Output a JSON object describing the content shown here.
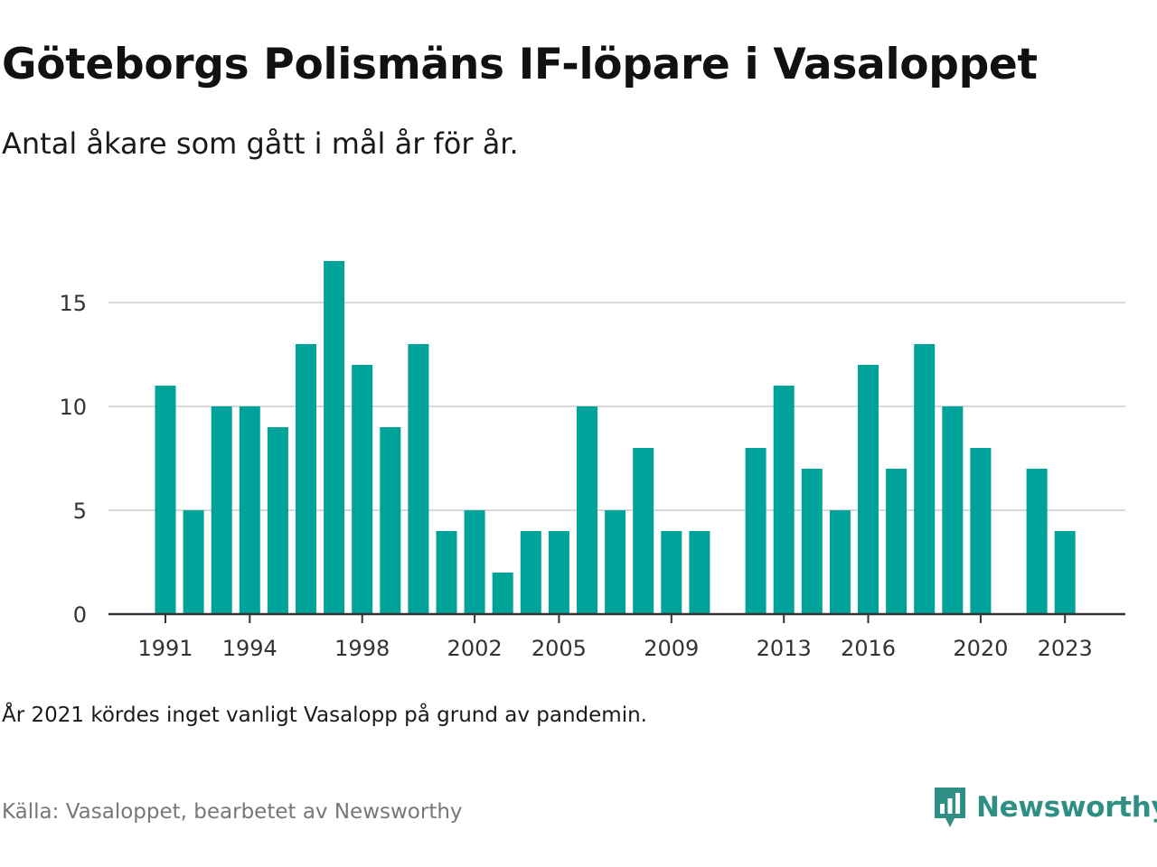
{
  "header": {
    "title": "Göteborgs Polismäns IF-löpare i Vasaloppet",
    "subtitle": "Antal åkare som gått i mål år för år."
  },
  "footer": {
    "note": "År 2021 kördes inget vanligt Vasalopp på grund av pandemin.",
    "source": "Källa: Vasaloppet, bearbetet av Newsworthy",
    "brand": "Newsworthy",
    "brand_icon": "newsworthy-logo-icon"
  },
  "colors": {
    "bar": "#00a399",
    "grid": "#d9d9d9",
    "axis": "#333333",
    "brand": "#2f8f85"
  },
  "chart_data": {
    "type": "bar",
    "x": [
      1991,
      1992,
      1993,
      1994,
      1995,
      1996,
      1997,
      1998,
      1999,
      2000,
      2001,
      2002,
      2003,
      2004,
      2005,
      2006,
      2007,
      2008,
      2009,
      2010,
      2011,
      2012,
      2013,
      2014,
      2015,
      2016,
      2017,
      2018,
      2019,
      2020,
      2021,
      2022,
      2023
    ],
    "values": [
      11,
      5,
      10,
      10,
      9,
      13,
      17,
      12,
      9,
      13,
      4,
      5,
      2,
      4,
      4,
      10,
      5,
      8,
      4,
      4,
      null,
      8,
      11,
      7,
      5,
      12,
      7,
      13,
      10,
      8,
      null,
      7,
      4
    ],
    "x_ticks": [
      1991,
      1994,
      1998,
      2002,
      2005,
      2009,
      2013,
      2016,
      2020,
      2023
    ],
    "y_ticks": [
      0,
      5,
      10,
      15
    ],
    "ylim": [
      0,
      17
    ],
    "xlabel": "",
    "ylabel": "",
    "grid": true,
    "legend": "none"
  }
}
